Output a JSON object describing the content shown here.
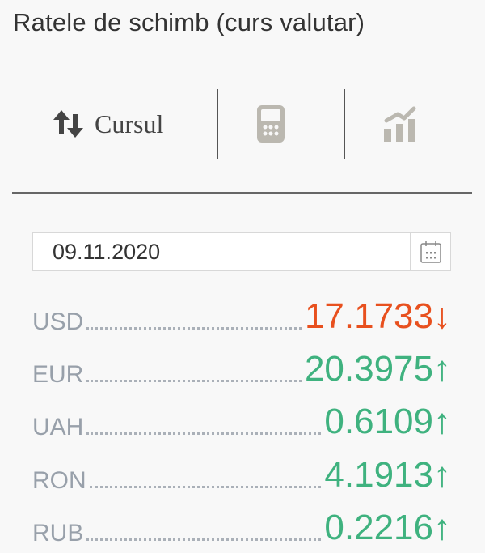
{
  "title": "Ratele de schimb (curs valutar)",
  "tabs": [
    {
      "label": "Cursul",
      "icon": "sort-arrows-icon"
    },
    {
      "label": "",
      "icon": "calculator-icon"
    },
    {
      "label": "",
      "icon": "chart-icon"
    }
  ],
  "date": {
    "value": "09.11.2020",
    "icon": "calendar-icon"
  },
  "colors": {
    "down": "#e8501e",
    "up": "#3fb27f"
  },
  "rates": [
    {
      "code": "USD",
      "value": "17.1733",
      "trend": "↓"
    },
    {
      "code": "EUR",
      "value": "20.3975",
      "trend": "↑"
    },
    {
      "code": "UAH",
      "value": "0.6109",
      "trend": "↑"
    },
    {
      "code": "RON",
      "value": "4.1913",
      "trend": "↑"
    },
    {
      "code": "RUB",
      "value": "0.2216",
      "trend": "↑"
    }
  ]
}
